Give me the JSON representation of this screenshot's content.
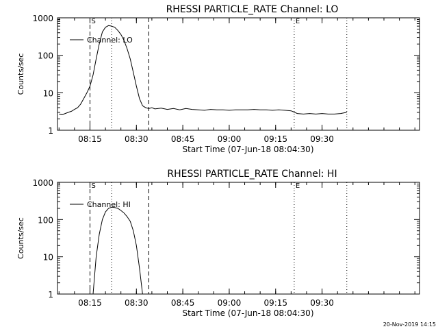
{
  "chart_data": [
    {
      "type": "line",
      "title": "RHESSI PARTICLE_RATE Channel: LO",
      "xlabel": "Start Time (07-Jun-18 08:04:30)",
      "ylabel": "Counts/sec",
      "yscale": "log",
      "ylim": [
        1,
        1000
      ],
      "xlim": [
        "08:04:30",
        "10:01:30"
      ],
      "xticks": [
        "08:15",
        "08:30",
        "08:45",
        "09:00",
        "09:15",
        "09:30"
      ],
      "yticks": [
        "1",
        "10",
        "100",
        "1000"
      ],
      "grid": false,
      "legend": {
        "position": "top-left",
        "entries": [
          "Channel: LO"
        ]
      },
      "markers": [
        {
          "label": "S",
          "time": "08:15:00",
          "style": "dashed"
        },
        {
          "label": "",
          "time": "08:22:00",
          "style": "dotted"
        },
        {
          "label": "",
          "time": "08:34:00",
          "style": "dashed"
        },
        {
          "label": "E",
          "time": "09:21:00",
          "style": "dotted"
        },
        {
          "label": "",
          "time": "09:38:00",
          "style": "dotted"
        }
      ],
      "series": [
        {
          "name": "Channel: LO",
          "x": [
            "08:05:00",
            "08:06:00",
            "08:07:00",
            "08:08:00",
            "08:09:00",
            "08:10:00",
            "08:11:00",
            "08:12:00",
            "08:13:00",
            "08:14:00",
            "08:15:00",
            "08:16:00",
            "08:17:00",
            "08:18:00",
            "08:19:00",
            "08:20:00",
            "08:21:00",
            "08:22:00",
            "08:23:00",
            "08:24:00",
            "08:25:00",
            "08:26:00",
            "08:27:00",
            "08:28:00",
            "08:29:00",
            "08:30:00",
            "08:31:00",
            "08:32:00",
            "08:33:00",
            "08:34:00",
            "08:35:00",
            "08:36:00",
            "08:38:00",
            "08:40:00",
            "08:42:00",
            "08:44:00",
            "08:46:00",
            "08:48:00",
            "08:50:00",
            "08:52:00",
            "08:54:00",
            "08:56:00",
            "08:58:00",
            "09:00:00",
            "09:02:00",
            "09:04:00",
            "09:06:00",
            "09:08:00",
            "09:10:00",
            "09:12:00",
            "09:14:00",
            "09:16:00",
            "09:18:00",
            "09:20:00",
            "09:22:00",
            "09:24:00",
            "09:26:00",
            "09:28:00",
            "09:30:00",
            "09:32:00",
            "09:34:00",
            "09:36:00",
            "09:38:00"
          ],
          "y": [
            2.7,
            2.6,
            2.8,
            3.0,
            3.2,
            3.6,
            4.0,
            5.0,
            7.0,
            10,
            15,
            30,
            80,
            200,
            420,
            560,
            620,
            600,
            560,
            460,
            360,
            250,
            150,
            80,
            35,
            15,
            7,
            4.5,
            4.0,
            3.8,
            4.0,
            3.7,
            3.9,
            3.6,
            3.8,
            3.5,
            3.8,
            3.6,
            3.5,
            3.4,
            3.6,
            3.5,
            3.5,
            3.4,
            3.5,
            3.5,
            3.5,
            3.6,
            3.5,
            3.5,
            3.4,
            3.5,
            3.4,
            3.3,
            2.8,
            2.7,
            2.8,
            2.7,
            2.8,
            2.7,
            2.7,
            2.8,
            3.0
          ]
        }
      ]
    },
    {
      "type": "line",
      "title": "RHESSI PARTICLE_RATE Channel: HI",
      "xlabel": "Start Time (07-Jun-18 08:04:30)",
      "ylabel": "Counts/sec",
      "yscale": "log",
      "ylim": [
        1,
        1000
      ],
      "xlim": [
        "08:04:30",
        "10:01:30"
      ],
      "xticks": [
        "08:15",
        "08:30",
        "08:45",
        "09:00",
        "09:15",
        "09:30"
      ],
      "yticks": [
        "1",
        "10",
        "100",
        "1000"
      ],
      "grid": false,
      "legend": {
        "position": "top-left",
        "entries": [
          "Channel: HI"
        ]
      },
      "markers": [
        {
          "label": "S",
          "time": "08:15:00",
          "style": "dashed"
        },
        {
          "label": "",
          "time": "08:22:00",
          "style": "dotted"
        },
        {
          "label": "",
          "time": "08:34:00",
          "style": "dashed"
        },
        {
          "label": "E",
          "time": "09:21:00",
          "style": "dotted"
        },
        {
          "label": "",
          "time": "09:38:00",
          "style": "dotted"
        }
      ],
      "series": [
        {
          "name": "Channel: HI",
          "x": [
            "08:16:00",
            "08:17:00",
            "08:18:00",
            "08:19:00",
            "08:20:00",
            "08:21:00",
            "08:22:00",
            "08:23:00",
            "08:24:00",
            "08:25:00",
            "08:26:00",
            "08:27:00",
            "08:28:00",
            "08:29:00",
            "08:30:00",
            "08:31:00",
            "08:32:00"
          ],
          "y": [
            1,
            10,
            40,
            100,
            160,
            200,
            215,
            210,
            200,
            175,
            150,
            120,
            90,
            50,
            20,
            5,
            1
          ]
        }
      ]
    }
  ],
  "footer": {
    "timestamp": "20-Nov-2019 14:15"
  }
}
